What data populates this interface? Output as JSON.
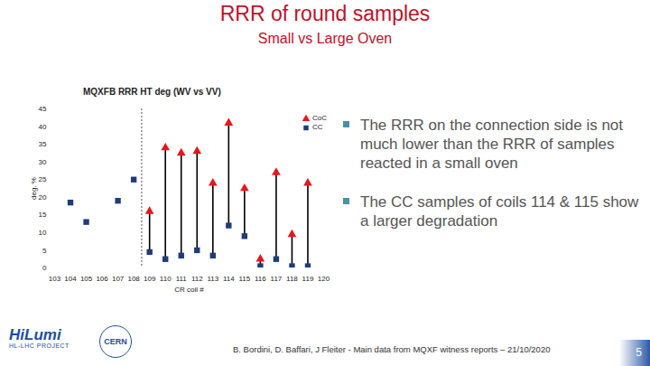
{
  "slide": {
    "title": "RRR of round samples",
    "subtitle": "Small vs Large Oven",
    "bullets": [
      "The RRR on the connection side is not much lower than the RRR of samples reacted in a small oven",
      "The CC samples of coils 114 & 115 show a larger degradation"
    ],
    "footer": "B. Bordini, D. Baffari, J Fleiter - Main data from MQXF witness reports – 21/10/2020",
    "page": "5",
    "logos": [
      "HiLumi",
      "HL-LHC PROJECT",
      "CERN"
    ]
  },
  "chart_data": {
    "type": "dumbbell",
    "title": "MQXFB RRR HT deg (WV vs VV)",
    "x_label": "CR coil #",
    "y_label": "deg. %",
    "xlim": [
      103,
      120
    ],
    "xticks": [
      103,
      104,
      105,
      106,
      107,
      108,
      109,
      110,
      111,
      112,
      113,
      114,
      115,
      116,
      117,
      118,
      119,
      120
    ],
    "ylim": [
      0,
      45
    ],
    "yticks": [
      0,
      5,
      10,
      15,
      20,
      25,
      30,
      35,
      40,
      45
    ],
    "grid": false,
    "legend": "top-right",
    "divider_x": 108.5,
    "series": [
      {
        "name": "CoC",
        "color": "#e8161b",
        "marker": "triangle",
        "x": [
          109,
          110,
          111,
          112,
          113,
          114,
          115,
          116,
          117,
          118,
          119
        ],
        "values": [
          16,
          34,
          32.5,
          33,
          24,
          41,
          22.5,
          2.5,
          27,
          9.5,
          24
        ]
      },
      {
        "name": "CC",
        "color": "#1f3c78",
        "marker": "square",
        "x": [
          104,
          105,
          107,
          108,
          109,
          110,
          111,
          112,
          113,
          114,
          115,
          116,
          117,
          118,
          119
        ],
        "values": [
          18.5,
          13,
          19,
          25,
          4.5,
          2.5,
          3.5,
          5,
          3.5,
          12,
          9,
          0.5,
          2.5,
          0.5,
          0.5
        ]
      }
    ]
  }
}
